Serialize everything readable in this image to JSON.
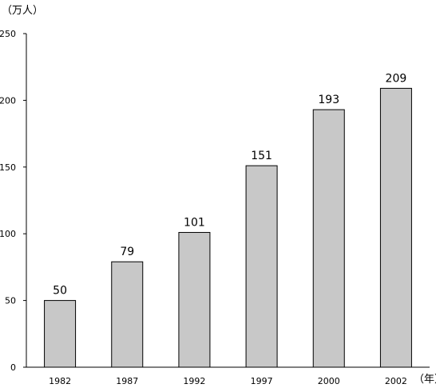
{
  "chart_data": {
    "type": "bar",
    "categories": [
      "1982",
      "1987",
      "1992",
      "1997",
      "2000",
      "2002"
    ],
    "values": [
      50,
      79,
      101,
      151,
      193,
      209
    ],
    "ylabel": "（万人）",
    "xlabel": "（年）",
    "ylim": [
      0,
      250
    ],
    "yticks": [
      0,
      50,
      100,
      150,
      200,
      250
    ],
    "grid": false,
    "colors": {
      "bar_fill": "#c8c8c8",
      "bar_stroke": "#000000",
      "axis": "#000000"
    }
  }
}
